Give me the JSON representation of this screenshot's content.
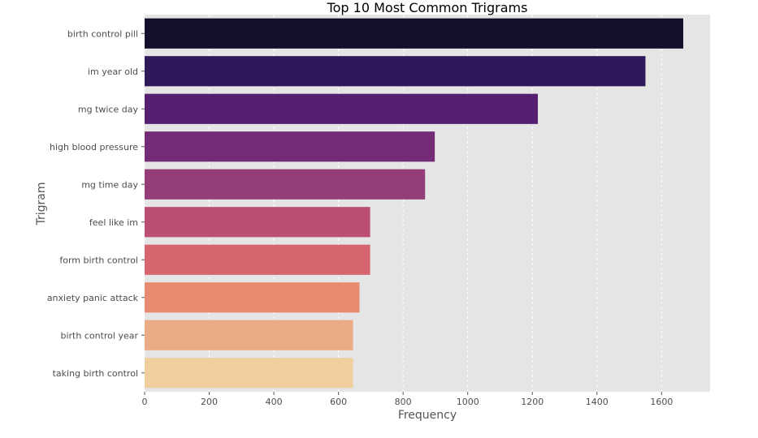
{
  "chart_data": {
    "type": "bar",
    "orientation": "horizontal",
    "title": "Top 10 Most Common Trigrams",
    "xlabel": "Frequency",
    "ylabel": "Trigram",
    "categories": [
      "birth control pill",
      "im year old",
      "mg twice day",
      "high blood pressure",
      "mg time day",
      "feel like im",
      "form birth control",
      "anxiety panic attack",
      "birth control year",
      "taking birth control"
    ],
    "values": [
      1667,
      1550,
      1217,
      898,
      868,
      698,
      698,
      665,
      645,
      645
    ],
    "xlim": [
      0,
      1750
    ],
    "xticks": [
      0,
      200,
      400,
      600,
      800,
      1000,
      1200,
      1400,
      1600
    ],
    "grid": true,
    "colors": [
      "#150f2c",
      "#30195a",
      "#561f72",
      "#742c76",
      "#953d78",
      "#bc4e72",
      "#d7656f",
      "#e68b70",
      "#ebab84",
      "#f0ce9e"
    ],
    "background": "#e5e5e5",
    "gridColor": "#ffffff"
  }
}
